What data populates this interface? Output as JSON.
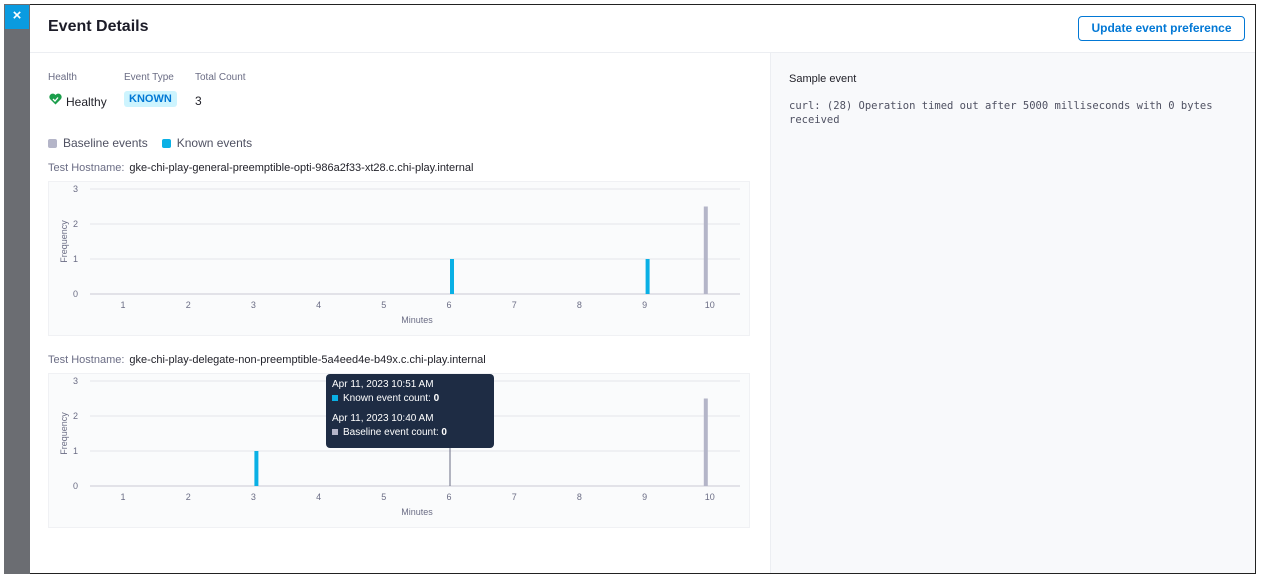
{
  "header": {
    "title": "Event Details",
    "button": "Update event preference"
  },
  "summary": {
    "health_label": "Health",
    "health": "Healthy",
    "event_type_label": "Event Type",
    "event_type": "KNOWN",
    "total_count_label": "Total Count",
    "total_count": 3
  },
  "legend": [
    {
      "name": "Baseline events",
      "color": "#b4b5c8"
    },
    {
      "name": "Known events",
      "color": "#0ab0e5"
    }
  ],
  "charts": [
    {
      "type": "bar",
      "hostname_label": "Test Hostname:",
      "hostname": "gke-chi-play-general-preemptible-opti-986a2f33-xt28.c.chi-play.internal",
      "x_label": "Minutes",
      "y_label": "Frequency",
      "categories": [
        "1",
        "2",
        "3",
        "4",
        "5",
        "6",
        "7",
        "8",
        "9",
        "10"
      ],
      "ylim": [
        0,
        3
      ],
      "yticks": [
        0,
        1,
        2,
        3
      ],
      "series": [
        {
          "values": [
            0,
            0,
            0,
            0,
            0,
            0,
            0,
            0,
            0,
            2.5
          ]
        },
        {
          "values": [
            0,
            0,
            0,
            0,
            0,
            1,
            0,
            0,
            1,
            0
          ]
        }
      ]
    },
    {
      "type": "bar",
      "hostname_label": "Test Hostname:",
      "hostname": "gke-chi-play-delegate-non-preemptible-5a4eed4e-b49x.c.chi-play.internal",
      "x_label": "Minutes",
      "y_label": "Frequency",
      "categories": [
        "1",
        "2",
        "3",
        "4",
        "5",
        "6",
        "7",
        "8",
        "9",
        "10"
      ],
      "ylim": [
        0,
        3
      ],
      "yticks": [
        0,
        1,
        2,
        3
      ],
      "series": [
        {
          "values": [
            0,
            0,
            0,
            0,
            0,
            0,
            0,
            0,
            0,
            2.5
          ]
        },
        {
          "values": [
            0,
            0,
            1,
            0,
            0,
            0,
            0,
            0,
            0,
            0
          ]
        }
      ]
    }
  ],
  "tooltip": [
    {
      "time": "Apr 11, 2023 10:51 AM",
      "label": "Known event count:",
      "value": 0
    },
    {
      "time": "Apr 11, 2023 10:40 AM",
      "label": "Baseline event count:",
      "value": 0
    }
  ],
  "sample_event": {
    "title": "Sample event",
    "text": "curl: (28) Operation timed out after 5000 milliseconds with 0 bytes received"
  }
}
